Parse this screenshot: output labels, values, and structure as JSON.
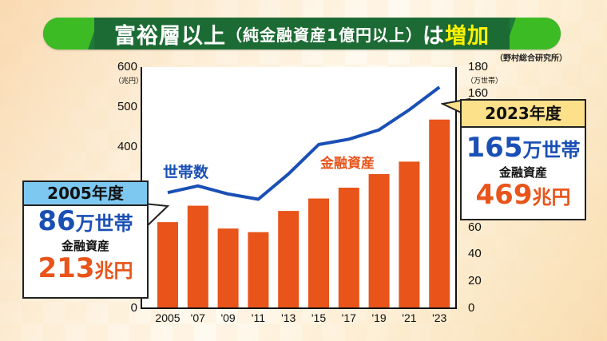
{
  "title": {
    "main": "富裕層以上",
    "sub": "（純金融資産1億円以上）",
    "particle": "は",
    "highlight": "増加"
  },
  "source": "（野村総合研究所）",
  "axes": {
    "left_unit": "（兆円）",
    "right_unit": "（万世帯）",
    "left_ticks": [
      "600",
      "500",
      "400",
      "0"
    ],
    "right_ticks": [
      "180",
      "160",
      "60",
      "40",
      "20",
      "0"
    ],
    "x_labels": [
      "2005",
      "'07",
      "'09",
      "'11",
      "'13",
      "'15",
      "'17",
      "'19",
      "'21",
      "'23"
    ]
  },
  "series_labels": {
    "line": "世帯数",
    "bar": "金融資産"
  },
  "callout_2005": {
    "year": "2005年度",
    "households_num": "86",
    "households_unit": "万世帯",
    "asset_label": "金融資産",
    "asset_num": "213",
    "asset_unit": "兆円"
  },
  "callout_2023": {
    "year": "2023年度",
    "households_num": "165",
    "households_unit": "万世帯",
    "asset_label": "金融資産",
    "asset_num": "469",
    "asset_unit": "兆円"
  },
  "colors": {
    "bar": "#e8541a",
    "line": "#1a4fb5",
    "title_bg": "#1d6b34",
    "title_accent": "#3dbb24",
    "highlight": "#fff200"
  },
  "chart_data": {
    "type": "bar",
    "title": "富裕層以上（純金融資産1億円以上）は増加",
    "categories": [
      "2005",
      "'07",
      "'09",
      "'11",
      "'13",
      "'15",
      "'17",
      "'19",
      "'21",
      "'23"
    ],
    "series": [
      {
        "name": "金融資産",
        "type": "bar",
        "axis": "left",
        "unit": "兆円",
        "values": [
          213,
          254,
          197,
          188,
          241,
          272,
          299,
          333,
          364,
          469
        ]
      },
      {
        "name": "世帯数",
        "type": "line",
        "axis": "right",
        "unit": "万世帯",
        "values": [
          86,
          91,
          85,
          81,
          100,
          122,
          126,
          133,
          148,
          165
        ]
      }
    ],
    "ylabel_left": "兆円",
    "ylim_left": [
      0,
      600
    ],
    "ylabel_right": "万世帯",
    "ylim_right": [
      0,
      180
    ],
    "annotations": [
      "2005年度 86万世帯 金融資産213兆円",
      "2023年度 165万世帯 金融資産469兆円"
    ],
    "source": "野村総合研究所",
    "grid": false
  }
}
